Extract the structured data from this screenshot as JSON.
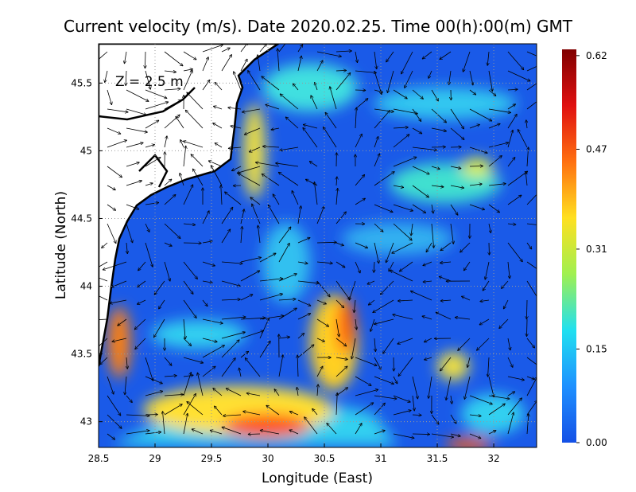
{
  "chart_data": {
    "type": "vector-map",
    "title": "Current velocity (m/s). Date 2020.02.25. Time 00(h):00(m) GMT",
    "annotation": "Z = 2.5 m",
    "x_label": "Longitude (East)",
    "y_label": "Latitude (North)",
    "xlim": [
      28.5,
      32.38
    ],
    "ylim": [
      42.81,
      45.79
    ],
    "xticks": [
      28.5,
      29,
      29.5,
      30,
      30.5,
      31,
      31.5,
      32
    ],
    "yticks": [
      43,
      43.5,
      44,
      44.5,
      45,
      45.5
    ],
    "grid": true,
    "colorbar": {
      "lim": [
        0,
        0.63
      ],
      "ticks": [
        {
          "value": 0,
          "label": "0.00"
        },
        0.15,
        0.31,
        0.47,
        0.62
      ],
      "colors": [
        "#1450e6",
        "#1e90ff",
        "#20e0f0",
        "#a0f050",
        "#ffe020",
        "#ff7010",
        "#e01010",
        "#800000"
      ]
    }
  }
}
